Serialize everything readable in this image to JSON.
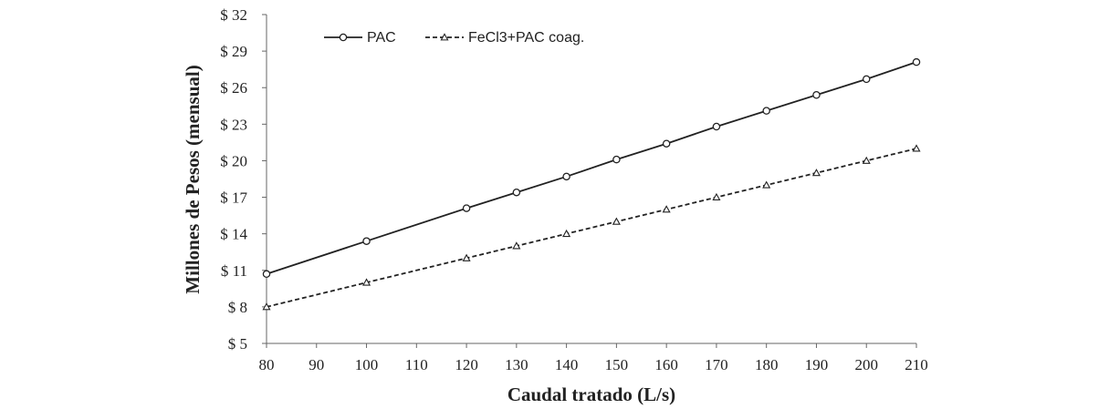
{
  "chart_data": {
    "type": "line",
    "title": "",
    "xlabel": "Caudal tratado (L/s)",
    "ylabel": "Millones de Pesos (mensual)",
    "x_ticks": [
      "80",
      "90",
      "100",
      "110",
      "120",
      "130",
      "140",
      "150",
      "160",
      "170",
      "180",
      "190",
      "200",
      "210"
    ],
    "y_ticks": [
      "$ 5",
      "$ 8",
      "$ 11",
      "$ 14",
      "$ 17",
      "$ 20",
      "$ 23",
      "$ 26",
      "$ 29",
      "$ 32"
    ],
    "xlim": [
      80,
      210
    ],
    "ylim": [
      5,
      32
    ],
    "grid": false,
    "legend_position": "top-left",
    "series": [
      {
        "name": "PAC",
        "line_style": "solid",
        "marker": "circle",
        "color": "#222222",
        "x": [
          80,
          100,
          120,
          130,
          140,
          150,
          160,
          170,
          180,
          190,
          200,
          210
        ],
        "y": [
          10.7,
          13.4,
          16.1,
          17.4,
          18.7,
          20.1,
          21.4,
          22.8,
          24.1,
          25.4,
          26.7,
          28.1
        ]
      },
      {
        "name": "FeCl3+PAC coag.",
        "line_style": "dashed",
        "marker": "triangle",
        "color": "#222222",
        "x": [
          80,
          100,
          120,
          130,
          140,
          150,
          160,
          170,
          180,
          190,
          200,
          210
        ],
        "y": [
          8.0,
          10.0,
          12.0,
          13.0,
          14.0,
          15.0,
          16.0,
          17.0,
          18.0,
          19.0,
          20.0,
          21.0
        ]
      }
    ]
  }
}
